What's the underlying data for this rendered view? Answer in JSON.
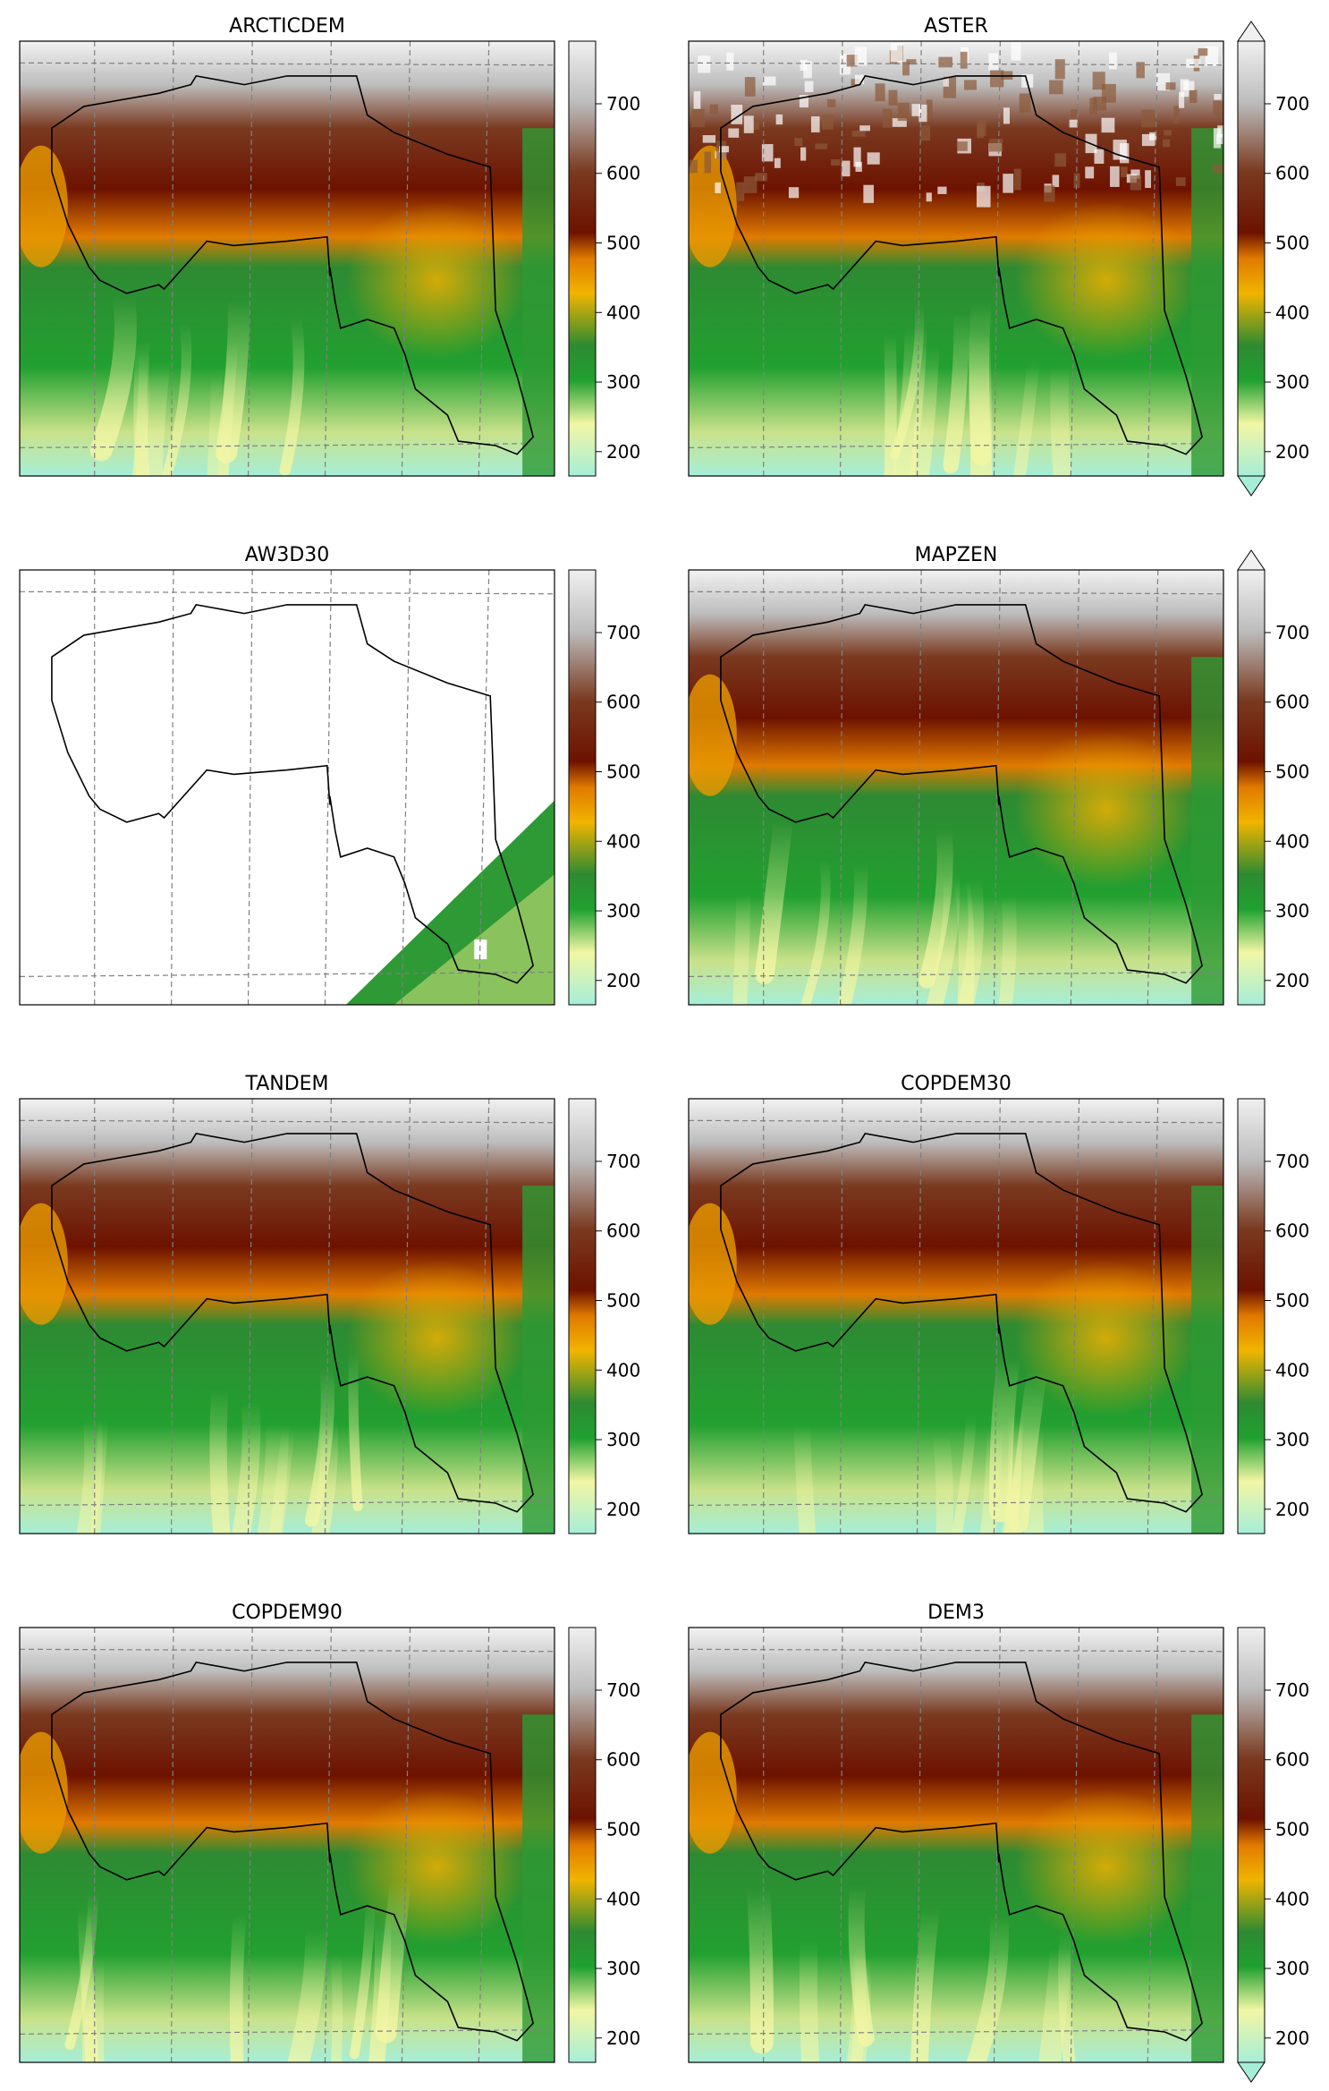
{
  "chart_data": {
    "type": "heatmap",
    "layout": "4 rows x 2 columns",
    "colormap": "terrain-like (aquamarine → yellow → green → orange → dark red → brown → light grey)",
    "colors": {
      "cmap_stops": [
        "#a6eed8",
        "#f2f6a4",
        "#20a030",
        "#2e8a32",
        "#f0b400",
        "#e07a00",
        "#6d1200",
        "#7a3a20",
        "#bdbdbd",
        "#f0f0f0"
      ],
      "graticule": "#808080",
      "outline": "#000000",
      "nodata": "#ffffff"
    },
    "panels": [
      {
        "title": "ARCTICDEM",
        "colorbar_ticks": [
          "200",
          "300",
          "400",
          "500",
          "600",
          "700"
        ],
        "vmin": 165,
        "vmax": 790,
        "extend": "neither",
        "coverage": "full"
      },
      {
        "title": "ASTER",
        "colorbar_ticks": [
          "200",
          "300",
          "400",
          "500",
          "600",
          "700"
        ],
        "vmin": 165,
        "vmax": 790,
        "extend": "both",
        "coverage": "full, noisy"
      },
      {
        "title": "AW3D30",
        "colorbar_ticks": [
          "200",
          "300",
          "400",
          "500",
          "600",
          "700"
        ],
        "vmin": 165,
        "vmax": 790,
        "extend": "neither",
        "coverage": "bottom-right corner only"
      },
      {
        "title": "MAPZEN",
        "colorbar_ticks": [
          "200",
          "300",
          "400",
          "500",
          "600",
          "700"
        ],
        "vmin": 165,
        "vmax": 790,
        "extend": "max",
        "coverage": "full"
      },
      {
        "title": "TANDEM",
        "colorbar_ticks": [
          "200",
          "300",
          "400",
          "500",
          "600",
          "700"
        ],
        "vmin": 165,
        "vmax": 790,
        "extend": "neither",
        "coverage": "full"
      },
      {
        "title": "COPDEM30",
        "colorbar_ticks": [
          "200",
          "300",
          "400",
          "500",
          "600",
          "700"
        ],
        "vmin": 165,
        "vmax": 790,
        "extend": "neither",
        "coverage": "full"
      },
      {
        "title": "COPDEM90",
        "colorbar_ticks": [
          "200",
          "300",
          "400",
          "500",
          "600",
          "700"
        ],
        "vmin": 165,
        "vmax": 790,
        "extend": "neither",
        "coverage": "full"
      },
      {
        "title": "DEM3",
        "colorbar_ticks": [
          "200",
          "300",
          "400",
          "500",
          "600",
          "700"
        ],
        "vmin": 165,
        "vmax": 790,
        "extend": "min",
        "coverage": "full"
      }
    ]
  }
}
